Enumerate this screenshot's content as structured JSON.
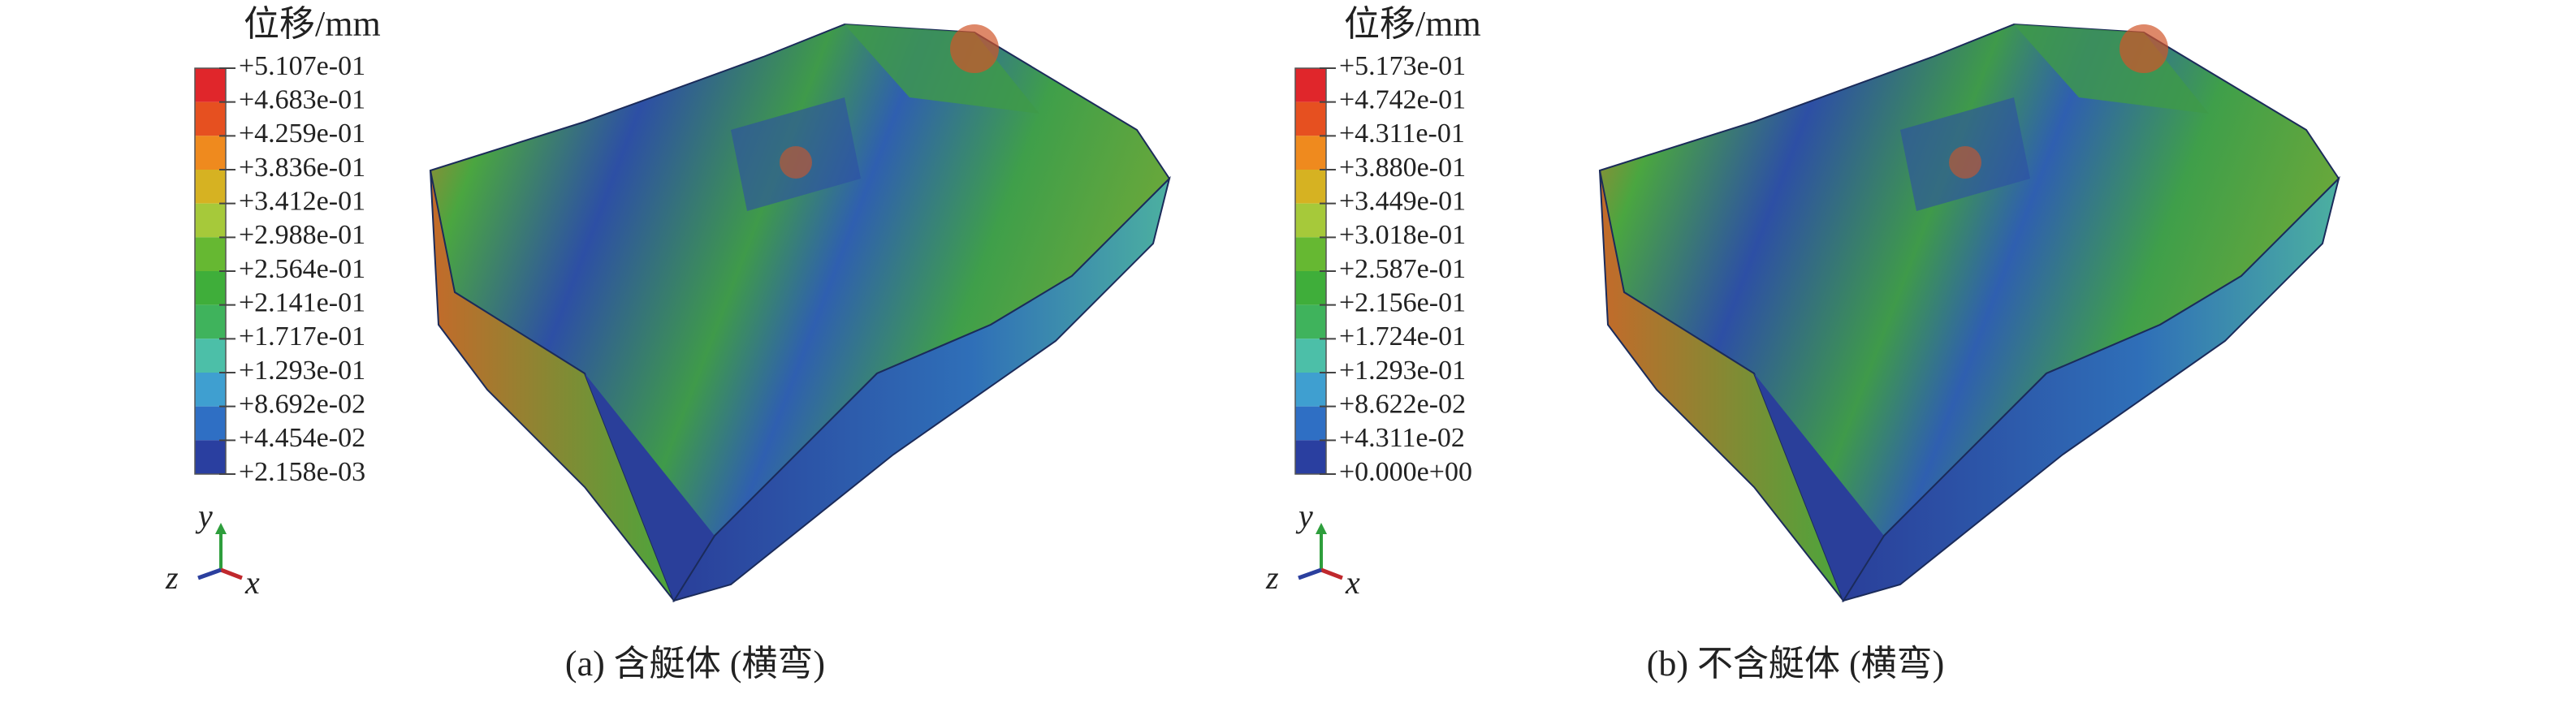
{
  "panels": [
    {
      "legend_title": "位移/mm",
      "legend_labels": [
        "+5.107e-01",
        "+4.683e-01",
        "+4.259e-01",
        "+3.836e-01",
        "+3.412e-01",
        "+2.988e-01",
        "+2.564e-01",
        "+2.141e-01",
        "+1.717e-01",
        "+1.293e-01",
        "+8.692e-02",
        "+4.454e-02",
        "+2.158e-03"
      ],
      "axis_labels": {
        "y": "y",
        "z": "z",
        "x": "x"
      },
      "caption": "(a) 含艇体 (横弯)"
    },
    {
      "legend_title": "位移/mm",
      "legend_labels": [
        "+5.173e-01",
        "+4.742e-01",
        "+4.311e-01",
        "+3.880e-01",
        "+3.449e-01",
        "+3.018e-01",
        "+2.587e-01",
        "+2.156e-01",
        "+1.724e-01",
        "+1.293e-01",
        "+8.622e-02",
        "+4.311e-02",
        "+0.000e+00"
      ],
      "axis_labels": {
        "y": "y",
        "z": "z",
        "x": "x"
      },
      "caption": "(b) 不含艇体 (横弯)"
    }
  ]
}
